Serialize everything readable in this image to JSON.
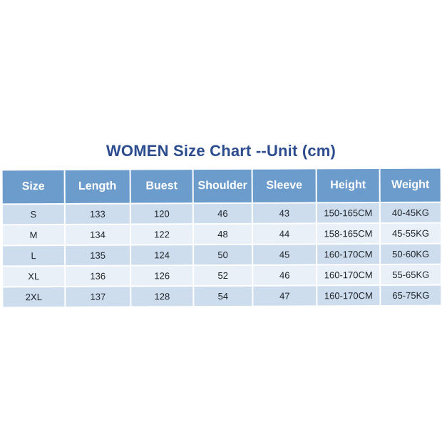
{
  "title": "WOMEN Size Chart --Unit (cm)",
  "colors": {
    "page_bg": "#ffffff",
    "title_text": "#2c4c8e",
    "header_bg": "#6c9ccc",
    "header_text": "#ffffff",
    "row_odd_bg": "#cdddee",
    "row_even_bg": "#e9f0f8",
    "cell_text": "#23272b"
  },
  "chart_data": {
    "type": "table",
    "title": "WOMEN Size Chart --Unit (cm)",
    "unit": "cm",
    "columns": [
      "Size",
      "Length",
      "Buest",
      "Shoulder",
      "Sleeve",
      "Height",
      "Weight"
    ],
    "rows": [
      [
        "S",
        "133",
        "120",
        "46",
        "43",
        "150-165CM",
        "40-45KG"
      ],
      [
        "M",
        "134",
        "122",
        "48",
        "44",
        "158-165CM",
        "45-55KG"
      ],
      [
        "L",
        "135",
        "124",
        "50",
        "45",
        "160-170CM",
        "50-60KG"
      ],
      [
        "XL",
        "136",
        "126",
        "52",
        "46",
        "160-170CM",
        "55-65KG"
      ],
      [
        "2XL",
        "137",
        "128",
        "54",
        "47",
        "160-170CM",
        "65-75KG"
      ]
    ]
  }
}
